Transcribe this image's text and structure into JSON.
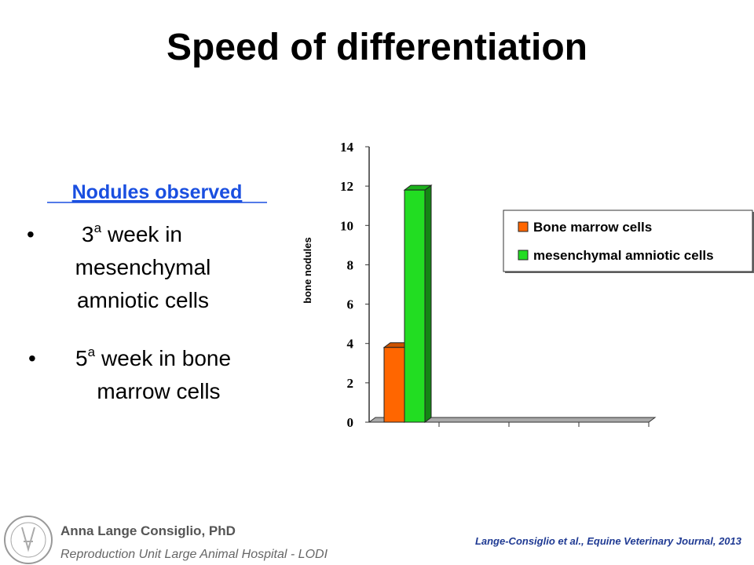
{
  "title": "Speed of differentiation",
  "subheading": "Nodules observed",
  "bullets": [
    {
      "number": "3",
      "sup": "a",
      "lines": [
        "week in",
        "mesenchymal",
        "amniotic cells"
      ]
    },
    {
      "number": "5",
      "sup": "a",
      "lines": [
        "week in bone",
        "marrow cells"
      ]
    }
  ],
  "chart_data": {
    "type": "bar3d",
    "ylabel": "bone nodules",
    "categories": [
      null,
      null,
      null,
      null
    ],
    "series": [
      {
        "name": "Bone marrow cells",
        "color": "#ff6600",
        "values": [
          3.8,
          null,
          null,
          null
        ]
      },
      {
        "name": "mesenchymal amniotic cells",
        "color": "#22dd22",
        "values": [
          11.8,
          null,
          null,
          null
        ]
      }
    ],
    "ylim": [
      0,
      14
    ],
    "yticks": [
      0,
      2,
      4,
      6,
      8,
      10,
      12,
      14
    ],
    "legend": "right"
  },
  "footer": {
    "author": "Anna Lange Consiglio, PhD",
    "affiliation": "Reproduction Unit Large Animal Hospital - LODI",
    "citation": "Lange-Consiglio et al., Equine Veterinary Journal, 2013"
  }
}
